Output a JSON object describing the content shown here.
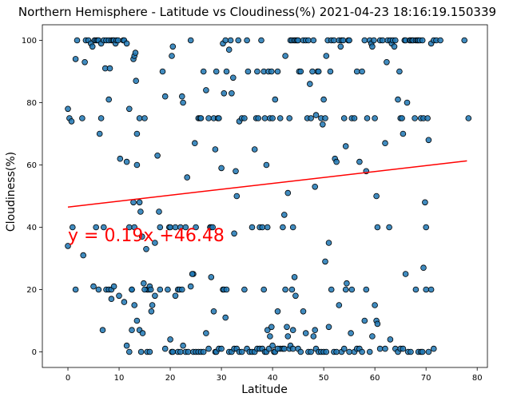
{
  "chart_data": {
    "type": "scatter",
    "title": "Northern Hemisphere - Latitude vs Cloudiness(%) 2021-04-23 18:16:19.150339",
    "xlabel": "Latitude",
    "ylabel": "Cloudiness(%)",
    "xlim": [
      -5,
      82
    ],
    "ylim": [
      -5,
      105
    ],
    "xticks": [
      0,
      10,
      20,
      30,
      40,
      50,
      60,
      70,
      80
    ],
    "yticks": [
      0,
      20,
      40,
      60,
      80,
      100
    ],
    "grid": false,
    "marker_color": "#1f77b4",
    "regression": {
      "slope": 0.19,
      "intercept": 46.48,
      "x_range": [
        0,
        78
      ],
      "color": "#ff0000"
    },
    "annotation": {
      "text": "y = 0.19x +46.48",
      "x": 0,
      "y": 35,
      "color": "#ff0000"
    },
    "points": [
      [
        0,
        78
      ],
      [
        0.3,
        75
      ],
      [
        0.7,
        74
      ],
      [
        0.9,
        40
      ],
      [
        1.5,
        20
      ],
      [
        1.5,
        94
      ],
      [
        1.8,
        100
      ],
      [
        2.8,
        75
      ],
      [
        3.3,
        93
      ],
      [
        3.5,
        100
      ],
      [
        4,
        100
      ],
      [
        4.5,
        99
      ],
      [
        4.8,
        98
      ],
      [
        5.2,
        100
      ],
      [
        5.5,
        100
      ],
      [
        5.5,
        40
      ],
      [
        5.8,
        100
      ],
      [
        6,
        100
      ],
      [
        6.2,
        70
      ],
      [
        6.5,
        99
      ],
      [
        6.5,
        75
      ],
      [
        7,
        100
      ],
      [
        7.5,
        100
      ],
      [
        7.3,
        91
      ],
      [
        8,
        100
      ],
      [
        8.2,
        91
      ],
      [
        8,
        81
      ],
      [
        8.5,
        100
      ],
      [
        8.8,
        100
      ],
      [
        9,
        100
      ],
      [
        9.3,
        99
      ],
      [
        9.5,
        100
      ],
      [
        9.8,
        100
      ],
      [
        6.8,
        7
      ],
      [
        7,
        40
      ],
      [
        7.5,
        20
      ],
      [
        8,
        20
      ],
      [
        8.5,
        17
      ],
      [
        8.5,
        20
      ],
      [
        9,
        21
      ],
      [
        10.2,
        62
      ],
      [
        10.8,
        100
      ],
      [
        11,
        100
      ],
      [
        11.5,
        99
      ],
      [
        11.5,
        61
      ],
      [
        12,
        40
      ],
      [
        12,
        78
      ],
      [
        12.5,
        20
      ],
      [
        12.5,
        20
      ],
      [
        12.8,
        48
      ],
      [
        12.8,
        94
      ],
      [
        13,
        95
      ],
      [
        13,
        40
      ],
      [
        13.2,
        96
      ],
      [
        13.3,
        87
      ],
      [
        13.5,
        70
      ],
      [
        13.5,
        60
      ],
      [
        14,
        75
      ],
      [
        14,
        48
      ],
      [
        14.2,
        45
      ],
      [
        14.5,
        37
      ],
      [
        14.8,
        22
      ],
      [
        15,
        75
      ],
      [
        15.3,
        33
      ],
      [
        15.5,
        20
      ],
      [
        15.8,
        20
      ],
      [
        16,
        21
      ],
      [
        16.3,
        13
      ],
      [
        16.5,
        15
      ],
      [
        17,
        35
      ],
      [
        17.5,
        63
      ],
      [
        17.8,
        45
      ],
      [
        18,
        40
      ],
      [
        18.5,
        90
      ],
      [
        19,
        82
      ],
      [
        19.5,
        20
      ],
      [
        19.8,
        40
      ],
      [
        20,
        40
      ],
      [
        20.3,
        95
      ],
      [
        20.5,
        98
      ],
      [
        21,
        40
      ],
      [
        21.5,
        20
      ],
      [
        21.8,
        20
      ],
      [
        22,
        40
      ],
      [
        22.3,
        82
      ],
      [
        22.5,
        80
      ],
      [
        23,
        40
      ],
      [
        23.3,
        56
      ],
      [
        24,
        100
      ],
      [
        24.5,
        25
      ],
      [
        24.8,
        67
      ],
      [
        25,
        40
      ],
      [
        25.5,
        75
      ],
      [
        25.8,
        75
      ],
      [
        26,
        75
      ],
      [
        26.5,
        90
      ],
      [
        27,
        84
      ],
      [
        27.5,
        75
      ],
      [
        27.8,
        40
      ],
      [
        28,
        40
      ],
      [
        28.3,
        40
      ],
      [
        28.5,
        75
      ],
      [
        28.8,
        65
      ],
      [
        29,
        90
      ],
      [
        29.3,
        75
      ],
      [
        29.5,
        75
      ],
      [
        30,
        59
      ],
      [
        30.3,
        99
      ],
      [
        30.5,
        83
      ],
      [
        30.8,
        100
      ],
      [
        31,
        90
      ],
      [
        31.5,
        97
      ],
      [
        31.8,
        100
      ],
      [
        32,
        83
      ],
      [
        32.3,
        88
      ],
      [
        32.5,
        38
      ],
      [
        32.8,
        58
      ],
      [
        33,
        50
      ],
      [
        33.3,
        100
      ],
      [
        33.5,
        74
      ],
      [
        34,
        75
      ],
      [
        34.5,
        75
      ],
      [
        35,
        100
      ],
      [
        35.2,
        90
      ],
      [
        36,
        40
      ],
      [
        36.5,
        65
      ],
      [
        36.8,
        75
      ],
      [
        37,
        90
      ],
      [
        37.2,
        75
      ],
      [
        37.5,
        40
      ],
      [
        37.8,
        100
      ],
      [
        38,
        40
      ],
      [
        38.3,
        90
      ],
      [
        38.5,
        75
      ],
      [
        38.8,
        60
      ],
      [
        39,
        40
      ],
      [
        39.2,
        90
      ],
      [
        39.5,
        75
      ],
      [
        39.8,
        90
      ],
      [
        40,
        75
      ],
      [
        40.5,
        81
      ],
      [
        41,
        90
      ],
      [
        41.5,
        75
      ],
      [
        42,
        40
      ],
      [
        42.3,
        44
      ],
      [
        42.5,
        95
      ],
      [
        43,
        51
      ],
      [
        43.3,
        75
      ],
      [
        43.5,
        100
      ],
      [
        43.8,
        100
      ],
      [
        44,
        40
      ],
      [
        44.2,
        100
      ],
      [
        44.5,
        100
      ],
      [
        44.8,
        100
      ],
      [
        45,
        100
      ],
      [
        45.2,
        90
      ],
      [
        45.5,
        90
      ],
      [
        46,
        100
      ],
      [
        46.5,
        100
      ],
      [
        46.8,
        75
      ],
      [
        47,
        100
      ],
      [
        47.3,
        86
      ],
      [
        47.5,
        75
      ],
      [
        47.8,
        90
      ],
      [
        48,
        100
      ],
      [
        48.3,
        53
      ],
      [
        48.5,
        76
      ],
      [
        48.8,
        90
      ],
      [
        49,
        90
      ],
      [
        49.5,
        75
      ],
      [
        49.8,
        73
      ],
      [
        50,
        81
      ],
      [
        50.3,
        75
      ],
      [
        50.5,
        95
      ],
      [
        50.8,
        100
      ],
      [
        51,
        35
      ],
      [
        51.3,
        90
      ],
      [
        51.5,
        100
      ],
      [
        52,
        100
      ],
      [
        52.2,
        62
      ],
      [
        52.5,
        61
      ],
      [
        53,
        100
      ],
      [
        53.3,
        98
      ],
      [
        53.5,
        100
      ],
      [
        53.8,
        100
      ],
      [
        54,
        75
      ],
      [
        54.3,
        66
      ],
      [
        54.8,
        100
      ],
      [
        55,
        100
      ],
      [
        55.5,
        75
      ],
      [
        56,
        75
      ],
      [
        56.5,
        90
      ],
      [
        57,
        61
      ],
      [
        57.5,
        90
      ],
      [
        58,
        100
      ],
      [
        58.3,
        58
      ],
      [
        58.5,
        75
      ],
      [
        59,
        100
      ],
      [
        59.3,
        99
      ],
      [
        59.5,
        98
      ],
      [
        59.8,
        100
      ],
      [
        60,
        75
      ],
      [
        60.3,
        50
      ],
      [
        60.5,
        40
      ],
      [
        61,
        100
      ],
      [
        61.5,
        100
      ],
      [
        62,
        67
      ],
      [
        62.3,
        93
      ],
      [
        62.5,
        100
      ],
      [
        62.8,
        40
      ],
      [
        63,
        100
      ],
      [
        63.3,
        99
      ],
      [
        63.5,
        100
      ],
      [
        63.8,
        98
      ],
      [
        64,
        100
      ],
      [
        64.5,
        81
      ],
      [
        64.8,
        90
      ],
      [
        65,
        75
      ],
      [
        65.3,
        75
      ],
      [
        65.5,
        70
      ],
      [
        65.8,
        100
      ],
      [
        66,
        100
      ],
      [
        66.3,
        80
      ],
      [
        66.8,
        100
      ],
      [
        67,
        100
      ],
      [
        67.3,
        100
      ],
      [
        67.5,
        100
      ],
      [
        67.8,
        75
      ],
      [
        68,
        100
      ],
      [
        68.3,
        100
      ],
      [
        68.5,
        100
      ],
      [
        68.8,
        100
      ],
      [
        69,
        75
      ],
      [
        69.3,
        100
      ],
      [
        69.5,
        75
      ],
      [
        69.8,
        48
      ],
      [
        70,
        40
      ],
      [
        70.3,
        75
      ],
      [
        70.5,
        68
      ],
      [
        71,
        99
      ],
      [
        71.5,
        100
      ],
      [
        72,
        100
      ],
      [
        72.8,
        100
      ],
      [
        77.5,
        100
      ],
      [
        78.3,
        75
      ],
      [
        0,
        34
      ],
      [
        3,
        31
      ],
      [
        5,
        21
      ],
      [
        6,
        20
      ],
      [
        10,
        18
      ],
      [
        11,
        16
      ],
      [
        11.5,
        2
      ],
      [
        12,
        0
      ],
      [
        12.5,
        7
      ],
      [
        13,
        15
      ],
      [
        13.5,
        10
      ],
      [
        14,
        7
      ],
      [
        14.3,
        0
      ],
      [
        14.6,
        6
      ],
      [
        15,
        20
      ],
      [
        15.5,
        0
      ],
      [
        16,
        0
      ],
      [
        16.2,
        20
      ],
      [
        17,
        18
      ],
      [
        18,
        20
      ],
      [
        19,
        1
      ],
      [
        20,
        4
      ],
      [
        20.3,
        0
      ],
      [
        20.5,
        0
      ],
      [
        21,
        18
      ],
      [
        21.5,
        0
      ],
      [
        22,
        0
      ],
      [
        22.3,
        20
      ],
      [
        22.5,
        2
      ],
      [
        23,
        0
      ],
      [
        23.5,
        0
      ],
      [
        24,
        21
      ],
      [
        24.3,
        25
      ],
      [
        24.5,
        0
      ],
      [
        25,
        0
      ],
      [
        25.5,
        0
      ],
      [
        26,
        0
      ],
      [
        26.5,
        0
      ],
      [
        27,
        6
      ],
      [
        27.5,
        1
      ],
      [
        28,
        24
      ],
      [
        28.5,
        13
      ],
      [
        28.8,
        0
      ],
      [
        29,
        0
      ],
      [
        29.5,
        1
      ],
      [
        30,
        1
      ],
      [
        30.3,
        20
      ],
      [
        30.5,
        20
      ],
      [
        30.8,
        11
      ],
      [
        31,
        20
      ],
      [
        31.5,
        0
      ],
      [
        32,
        0
      ],
      [
        32.5,
        1
      ],
      [
        33,
        1
      ],
      [
        33.5,
        0
      ],
      [
        34,
        0
      ],
      [
        34.5,
        20
      ],
      [
        35,
        1
      ],
      [
        35.5,
        0
      ],
      [
        36,
        0
      ],
      [
        36.5,
        0
      ],
      [
        37,
        1
      ],
      [
        37.5,
        1
      ],
      [
        38,
        1
      ],
      [
        38.3,
        20
      ],
      [
        38.5,
        0
      ],
      [
        38.8,
        0
      ],
      [
        39,
        7
      ],
      [
        39.3,
        1
      ],
      [
        39.5,
        5
      ],
      [
        39.8,
        8
      ],
      [
        40,
        2
      ],
      [
        40.3,
        0
      ],
      [
        40.5,
        0
      ],
      [
        41,
        13
      ],
      [
        41.5,
        1
      ],
      [
        42,
        1
      ],
      [
        42.3,
        1
      ],
      [
        42.5,
        20
      ],
      [
        42.8,
        8
      ],
      [
        43,
        5
      ],
      [
        43.3,
        1
      ],
      [
        43.5,
        2
      ],
      [
        43.8,
        20
      ],
      [
        44,
        1
      ],
      [
        44.3,
        24
      ],
      [
        44.5,
        18
      ],
      [
        45,
        1
      ],
      [
        45.5,
        0
      ],
      [
        46,
        13
      ],
      [
        46.5,
        6
      ],
      [
        47,
        0
      ],
      [
        47.5,
        0
      ],
      [
        48,
        5
      ],
      [
        48.3,
        7
      ],
      [
        48.5,
        1
      ],
      [
        49,
        0
      ],
      [
        49.5,
        0
      ],
      [
        50,
        0
      ],
      [
        50.3,
        29
      ],
      [
        50.5,
        0
      ],
      [
        51,
        8
      ],
      [
        51.5,
        20
      ],
      [
        52,
        0
      ],
      [
        52.5,
        0
      ],
      [
        53,
        15
      ],
      [
        53.5,
        0
      ],
      [
        54,
        1
      ],
      [
        54.3,
        20
      ],
      [
        54.5,
        22
      ],
      [
        55,
        0
      ],
      [
        55.3,
        6
      ],
      [
        55.5,
        20
      ],
      [
        56,
        0
      ],
      [
        56.5,
        1
      ],
      [
        57,
        1
      ],
      [
        57.5,
        0
      ],
      [
        58,
        10
      ],
      [
        58.3,
        20
      ],
      [
        59,
        0
      ],
      [
        59.5,
        5
      ],
      [
        60,
        15
      ],
      [
        60.3,
        10
      ],
      [
        60.5,
        9
      ],
      [
        61,
        1
      ],
      [
        62,
        1
      ],
      [
        63,
        4
      ],
      [
        64,
        1
      ],
      [
        64.5,
        0
      ],
      [
        65,
        1
      ],
      [
        65.5,
        1
      ],
      [
        66,
        25
      ],
      [
        66.5,
        0
      ],
      [
        67,
        0
      ],
      [
        68,
        20
      ],
      [
        68.5,
        0
      ],
      [
        69,
        0
      ],
      [
        69.3,
        0
      ],
      [
        69.5,
        27
      ],
      [
        70,
        20
      ],
      [
        70.5,
        0
      ],
      [
        71,
        20
      ],
      [
        71.5,
        1
      ],
      [
        44,
        7
      ],
      [
        41,
        1
      ]
    ]
  }
}
